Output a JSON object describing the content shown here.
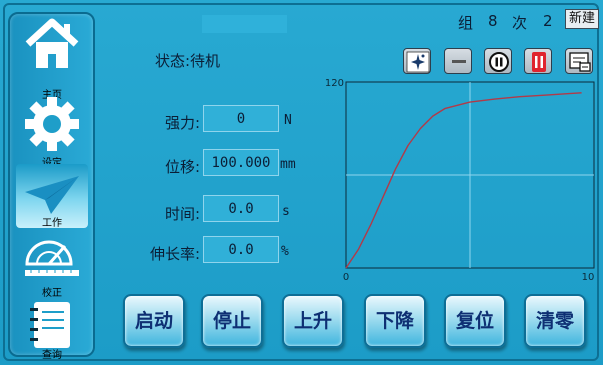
{
  "header": {
    "group_label": "组",
    "group_value": "8",
    "count_label": "次",
    "count_value": "2",
    "new_button": "新建"
  },
  "status": {
    "text": "状态:待机"
  },
  "toolbar": {
    "icons": [
      "sparkle-icon",
      "minus-icon",
      "pause-icon",
      "sample-clamp-icon",
      "report-icon"
    ]
  },
  "sidebar": {
    "items": [
      {
        "label": "主页",
        "icon": "home-icon",
        "active": false
      },
      {
        "label": "设定",
        "icon": "gear-icon",
        "active": false
      },
      {
        "label": "工作",
        "icon": "paper-plane-icon",
        "active": true
      },
      {
        "label": "校正",
        "icon": "protractor-icon",
        "active": false
      },
      {
        "label": "查询",
        "icon": "notebook-icon",
        "active": false
      }
    ]
  },
  "fields": [
    {
      "label": "强力:",
      "value": "0",
      "unit": "N"
    },
    {
      "label": "位移:",
      "value": "100.000",
      "unit": "mm"
    },
    {
      "label": "时间:",
      "value": "0.0",
      "unit": "s"
    },
    {
      "label": "伸长率:",
      "value": "0.0",
      "unit": "%"
    }
  ],
  "buttons": [
    "启动",
    "停止",
    "上升",
    "下降",
    "复位",
    "清零"
  ],
  "colors": {
    "background": "#22a3cd",
    "curve": "#b23a48",
    "grid": "#8fd6ee",
    "button_text": "#0e2f73"
  },
  "chart_data": {
    "type": "line",
    "title": "",
    "xlabel": "",
    "ylabel": "",
    "xlim": [
      0,
      10
    ],
    "ylim": [
      0,
      120
    ],
    "x_ticks": [
      "0",
      "10"
    ],
    "y_ticks": [
      "120"
    ],
    "grid": true,
    "series": [
      {
        "x": [
          0,
          0.5,
          1,
          1.5,
          2,
          2.5,
          3,
          3.5,
          4,
          5,
          6,
          7,
          8,
          9,
          9.5
        ],
        "values": [
          0,
          12,
          28,
          46,
          64,
          79,
          90,
          98,
          103,
          107,
          109,
          110.5,
          111.5,
          112.5,
          113
        ]
      }
    ]
  }
}
